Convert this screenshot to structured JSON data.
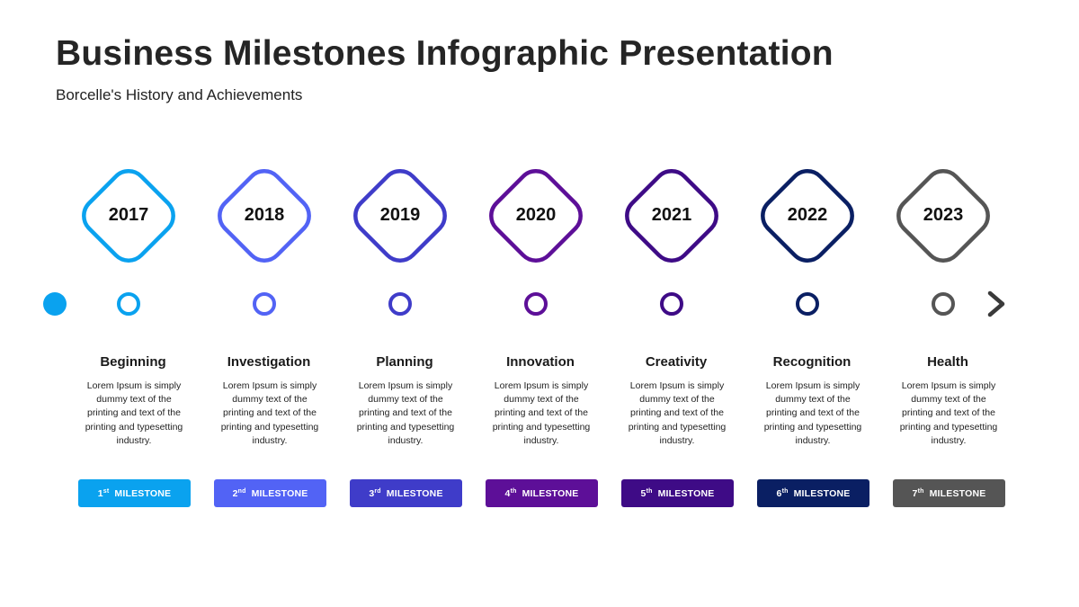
{
  "title": "Business Milestones Infographic Presentation",
  "subtitle": "Borcelle's History and Achievements",
  "badge_label": "MILESTONE",
  "milestones": [
    {
      "year": "2017",
      "title": "Beginning",
      "desc": "Lorem Ipsum is simply dummy text of the printing and text of the printing and typesetting industry.",
      "number": "1",
      "suffix": "st",
      "color": "#0aa2ef"
    },
    {
      "year": "2018",
      "title": "Investigation",
      "desc": "Lorem Ipsum is simply dummy text of the printing and text of the printing and typesetting industry.",
      "number": "2",
      "suffix": "nd",
      "color": "#5263f5"
    },
    {
      "year": "2019",
      "title": "Planning",
      "desc": "Lorem Ipsum is simply dummy text of the printing and text of the printing and typesetting industry.",
      "number": "3",
      "suffix": "rd",
      "color": "#3f3cc9"
    },
    {
      "year": "2020",
      "title": "Innovation",
      "desc": "Lorem Ipsum is simply dummy text of the printing and text of the printing and typesetting industry.",
      "number": "4",
      "suffix": "th",
      "color": "#5d0f98"
    },
    {
      "year": "2021",
      "title": "Creativity",
      "desc": "Lorem Ipsum is simply dummy text of the printing and text of the printing and typesetting industry.",
      "number": "5",
      "suffix": "th",
      "color": "#3e0b86"
    },
    {
      "year": "2022",
      "title": "Recognition",
      "desc": "Lorem Ipsum is simply dummy text of the printing and text of the printing and typesetting industry.",
      "number": "6",
      "suffix": "th",
      "color": "#0a1f63"
    },
    {
      "year": "2023",
      "title": "Health",
      "desc": "Lorem Ipsum is simply dummy text of the printing and text of the printing and typesetting industry.",
      "number": "7",
      "suffix": "th",
      "color": "#555555"
    }
  ],
  "line": {
    "start_color": "#0aa2ef",
    "end_color": "#3a3a3a"
  }
}
